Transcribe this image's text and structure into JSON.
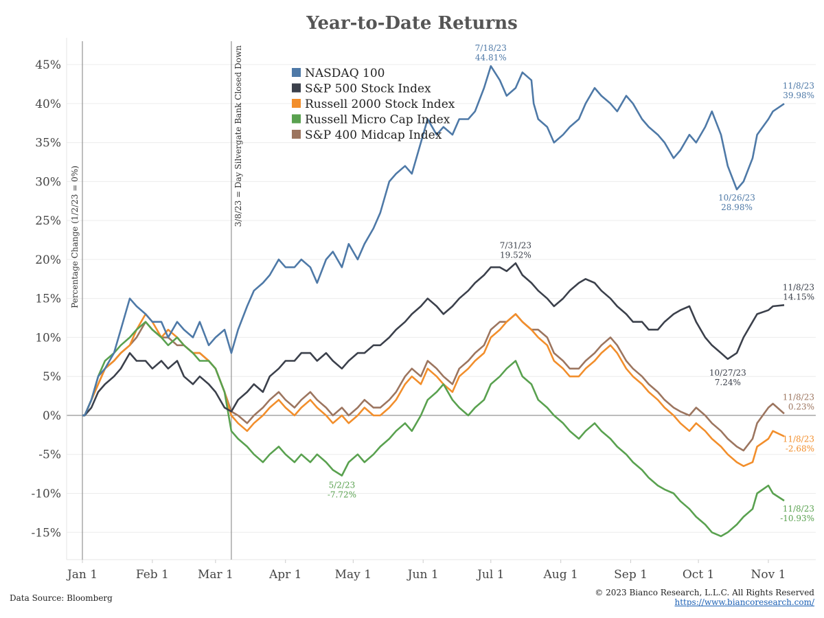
{
  "chart_data": {
    "type": "line",
    "title": "Year-to-Date Returns",
    "ylabel": "Percentage Change (1/2/23 = 0%)",
    "ylim": [
      -18.5,
      48
    ],
    "yticks": [
      -15,
      -10,
      -5,
      0,
      5,
      10,
      15,
      20,
      25,
      30,
      35,
      40,
      45
    ],
    "ytick_labels": [
      "-15%",
      "-10%",
      "-5%",
      "0%",
      "5%",
      "10%",
      "15%",
      "20%",
      "25%",
      "30%",
      "35%",
      "40%",
      "45%"
    ],
    "xlim": [
      -7,
      325
    ],
    "xticks": [
      0,
      31,
      59,
      90,
      120,
      151,
      181,
      212,
      243,
      273,
      304
    ],
    "xtick_labels": [
      "Jan 1",
      "Feb 1",
      "Mar 1",
      "Apr 1",
      "May 1",
      "Jun 1",
      "Jul 1",
      "Aug 1",
      "Sep 1",
      "Oct 1",
      "Nov 1"
    ],
    "grid": "horizontal",
    "legend_position": "top-left",
    "vlines": [
      {
        "x": 0,
        "label": ""
      },
      {
        "x": 66,
        "label": "3/8/23 = Day Silvergate Bank Closed Down"
      }
    ],
    "series": [
      {
        "name": "NASDAQ 100",
        "color": "#4e79a7",
        "x": [
          1,
          4,
          7,
          10,
          14,
          17,
          21,
          24,
          28,
          31,
          35,
          38,
          42,
          45,
          49,
          52,
          56,
          59,
          63,
          66,
          69,
          73,
          76,
          80,
          83,
          87,
          90,
          94,
          97,
          101,
          104,
          108,
          111,
          115,
          118,
          122,
          125,
          129,
          132,
          136,
          139,
          143,
          146,
          150,
          153,
          157,
          160,
          164,
          167,
          171,
          174,
          178,
          181,
          185,
          188,
          192,
          195,
          199,
          200,
          202,
          206,
          209,
          213,
          216,
          220,
          223,
          227,
          230,
          234,
          237,
          241,
          244,
          248,
          251,
          255,
          258,
          262,
          265,
          269,
          272,
          276,
          279,
          283,
          286,
          290,
          293,
          297,
          299,
          304,
          306,
          311
        ],
        "y": [
          0,
          2,
          5,
          6,
          8,
          11,
          15,
          14,
          13,
          12,
          12,
          10,
          12,
          11,
          10,
          12,
          9,
          10,
          11,
          8,
          11,
          14,
          16,
          17,
          18,
          20,
          19,
          19,
          20,
          19,
          17,
          20,
          21,
          19,
          22,
          20,
          22,
          24,
          26,
          30,
          31,
          32,
          31,
          35,
          38,
          36,
          37,
          36,
          38,
          38,
          39,
          42,
          44.81,
          43,
          41,
          42,
          44,
          43,
          40,
          38,
          37,
          35,
          36,
          37,
          38,
          40,
          42,
          41,
          40,
          39,
          41,
          40,
          38,
          37,
          36,
          35,
          33,
          34,
          36,
          35,
          37,
          39,
          36,
          32,
          28.98,
          30,
          33,
          36,
          38,
          39,
          39.98
        ],
        "start_label": "7/18/23\n44.81%",
        "min_label": "10/26/23\n28.98%",
        "end_label": "11/8/23\n39.98%"
      },
      {
        "name": "S&P 500 Stock Index",
        "color": "#3b404b",
        "x": [
          1,
          4,
          7,
          10,
          14,
          17,
          21,
          24,
          28,
          31,
          35,
          38,
          42,
          45,
          49,
          52,
          56,
          59,
          63,
          66,
          69,
          73,
          76,
          80,
          83,
          87,
          90,
          94,
          97,
          101,
          104,
          108,
          111,
          115,
          118,
          122,
          125,
          129,
          132,
          136,
          139,
          143,
          146,
          150,
          153,
          157,
          160,
          164,
          167,
          171,
          174,
          178,
          181,
          185,
          188,
          192,
          195,
          199,
          202,
          206,
          209,
          213,
          216,
          220,
          223,
          227,
          230,
          234,
          237,
          241,
          244,
          248,
          251,
          255,
          258,
          262,
          265,
          269,
          272,
          276,
          279,
          283,
          286,
          290,
          293,
          297,
          299,
          304,
          306,
          311
        ],
        "y": [
          0,
          1,
          3,
          4,
          5,
          6,
          8,
          7,
          7,
          6,
          7,
          6,
          7,
          5,
          4,
          5,
          4,
          3,
          1,
          0.5,
          2,
          3,
          4,
          3,
          5,
          6,
          7,
          7,
          8,
          8,
          7,
          8,
          7,
          6,
          7,
          8,
          8,
          9,
          9,
          10,
          11,
          12,
          13,
          14,
          15,
          14,
          13,
          14,
          15,
          16,
          17,
          18,
          19,
          19,
          18.5,
          19.52,
          18,
          17,
          16,
          15,
          14,
          15,
          16,
          17,
          17.5,
          17,
          16,
          15,
          14,
          13,
          12,
          12,
          11,
          11,
          12,
          13,
          13.5,
          14,
          12,
          10,
          9,
          8,
          7.24,
          8,
          10,
          12,
          13,
          13.5,
          14,
          14.15
        ],
        "peak_label": "7/31/23\n19.52%",
        "min_label": "10/27/23\n7.24%",
        "end_label": "11/8/23\n14.15%"
      },
      {
        "name": "Russell 2000 Stock Index",
        "color": "#f28e2b",
        "x": [
          1,
          4,
          7,
          10,
          14,
          17,
          21,
          24,
          28,
          31,
          35,
          38,
          42,
          45,
          49,
          52,
          56,
          59,
          63,
          66,
          69,
          73,
          76,
          80,
          83,
          87,
          90,
          94,
          97,
          101,
          104,
          108,
          111,
          115,
          118,
          122,
          125,
          129,
          132,
          136,
          139,
          143,
          146,
          150,
          153,
          157,
          160,
          164,
          167,
          171,
          174,
          178,
          181,
          185,
          188,
          192,
          195,
          199,
          202,
          206,
          209,
          213,
          216,
          220,
          223,
          227,
          230,
          234,
          237,
          241,
          244,
          248,
          251,
          255,
          258,
          262,
          265,
          269,
          272,
          276,
          279,
          283,
          286,
          290,
          293,
          297,
          299,
          304,
          306,
          311
        ],
        "y": [
          0,
          2,
          4,
          6,
          7,
          8,
          9,
          11,
          13,
          12,
          10,
          11,
          10,
          9,
          8,
          8,
          7,
          6,
          3,
          0,
          -1,
          -2,
          -1,
          0,
          1,
          2,
          1,
          0,
          1,
          2,
          1,
          0,
          -1,
          0,
          -1,
          0,
          1,
          0,
          0,
          1,
          2,
          4,
          5,
          4,
          6,
          5,
          4,
          3,
          5,
          6,
          7,
          8,
          10,
          11,
          12,
          13,
          12,
          11,
          10,
          9,
          7,
          6,
          5,
          5,
          6,
          7,
          8,
          9,
          8,
          6,
          5,
          4,
          3,
          2,
          1,
          0,
          -1,
          -2,
          -1,
          -2,
          -3,
          -4,
          -5,
          -6,
          -6.5,
          -6,
          -4,
          -3,
          -2,
          -2.68
        ],
        "end_label": "11/8/23\n-2.68%"
      },
      {
        "name": "Russell Micro Cap Index",
        "color": "#59a14f",
        "x": [
          1,
          4,
          7,
          10,
          14,
          17,
          21,
          24,
          28,
          31,
          35,
          38,
          42,
          45,
          49,
          52,
          56,
          59,
          63,
          66,
          69,
          73,
          76,
          80,
          83,
          87,
          90,
          94,
          97,
          101,
          104,
          108,
          111,
          115,
          118,
          122,
          125,
          129,
          132,
          136,
          139,
          143,
          146,
          150,
          153,
          157,
          160,
          164,
          167,
          171,
          174,
          178,
          181,
          185,
          188,
          192,
          195,
          199,
          202,
          206,
          209,
          213,
          216,
          220,
          223,
          227,
          230,
          234,
          237,
          241,
          244,
          248,
          251,
          255,
          258,
          262,
          265,
          269,
          272,
          276,
          279,
          283,
          286,
          290,
          293,
          297,
          299,
          304,
          306,
          311
        ],
        "y": [
          0,
          2,
          5,
          7,
          8,
          9,
          10,
          11,
          12,
          11,
          10,
          9,
          10,
          9,
          8,
          7,
          7,
          6,
          3,
          -2,
          -3,
          -4,
          -5,
          -6,
          -5,
          -4,
          -5,
          -6,
          -5,
          -6,
          -5,
          -6,
          -7,
          -7.72,
          -6,
          -5,
          -6,
          -5,
          -4,
          -3,
          -2,
          -1,
          -2,
          0,
          2,
          3,
          4,
          2,
          1,
          0,
          1,
          2,
          4,
          5,
          6,
          7,
          5,
          4,
          2,
          1,
          0,
          -1,
          -2,
          -3,
          -2,
          -1,
          -2,
          -3,
          -4,
          -5,
          -6,
          -7,
          -8,
          -9,
          -9.5,
          -10,
          -11,
          -12,
          -13,
          -14,
          -15,
          -15.5,
          -15,
          -14,
          -13,
          -12,
          -10,
          -9,
          -10,
          -10.93
        ],
        "min_label": "5/2/23\n-7.72%",
        "end_label": "11/8/23\n-10.93%"
      },
      {
        "name": "S&P 400 Midcap Index",
        "color": "#9c755f",
        "x": [
          1,
          4,
          7,
          10,
          14,
          17,
          21,
          24,
          28,
          31,
          35,
          38,
          42,
          45,
          49,
          52,
          56,
          59,
          63,
          66,
          69,
          73,
          76,
          80,
          83,
          87,
          90,
          94,
          97,
          101,
          104,
          108,
          111,
          115,
          118,
          122,
          125,
          129,
          132,
          136,
          139,
          143,
          146,
          150,
          153,
          157,
          160,
          164,
          167,
          171,
          174,
          178,
          181,
          185,
          188,
          192,
          195,
          199,
          202,
          206,
          209,
          213,
          216,
          220,
          223,
          227,
          230,
          234,
          237,
          241,
          244,
          248,
          251,
          255,
          258,
          262,
          265,
          269,
          272,
          276,
          279,
          283,
          286,
          290,
          293,
          297,
          299,
          304,
          306,
          311
        ],
        "y": [
          0,
          2,
          4,
          6,
          7,
          8,
          9,
          10,
          12,
          11,
          10,
          10,
          9,
          9,
          8,
          8,
          7,
          6,
          3,
          0.5,
          0,
          -1,
          0,
          1,
          2,
          3,
          2,
          1,
          2,
          3,
          2,
          1,
          0,
          1,
          0,
          1,
          2,
          1,
          1,
          2,
          3,
          5,
          6,
          5,
          7,
          6,
          5,
          4,
          6,
          7,
          8,
          9,
          11,
          12,
          12,
          13,
          12,
          11,
          11,
          10,
          8,
          7,
          6,
          6,
          7,
          8,
          9,
          10,
          9,
          7,
          6,
          5,
          4,
          3,
          2,
          1,
          0.5,
          0,
          1,
          0,
          -1,
          -2,
          -3,
          -4,
          -4.5,
          -3,
          -1,
          1,
          1.5,
          0.23
        ],
        "end_label": "11/8/23\n0.23%"
      }
    ]
  },
  "footer": {
    "source": "Data Source: Bloomberg",
    "copyright": "© 2023 Bianco Research, L.L.C. All Rights Reserved",
    "url": "https://www.biancoresearch.com/"
  }
}
